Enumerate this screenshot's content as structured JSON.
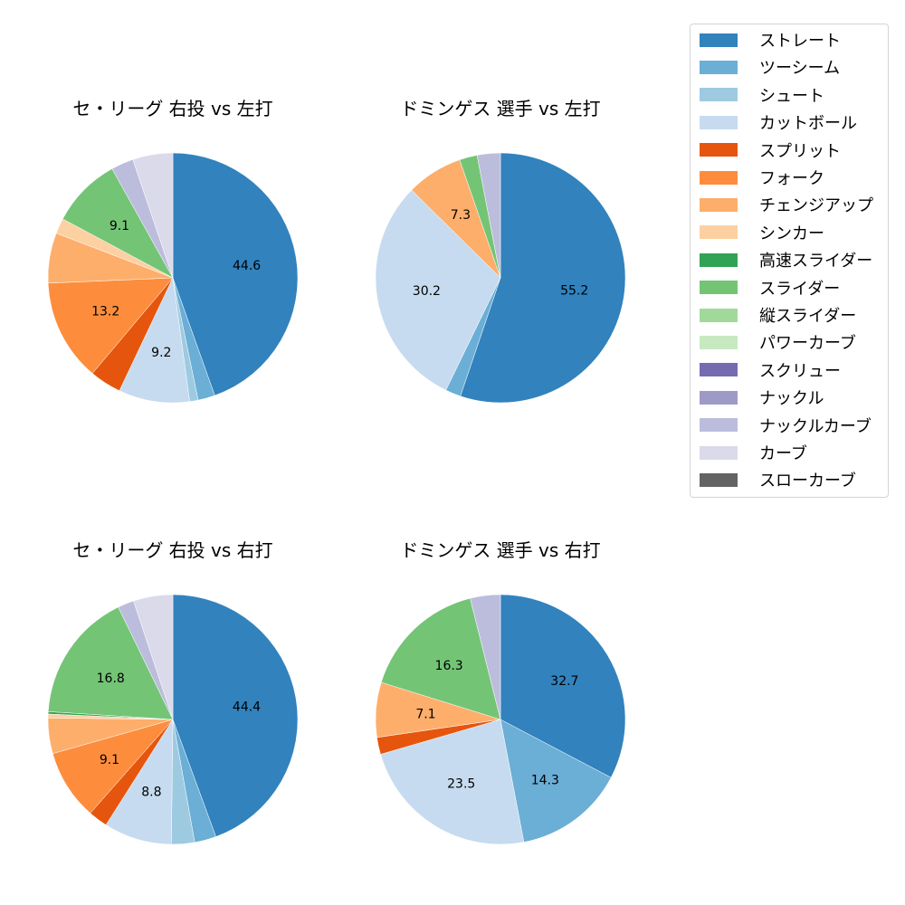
{
  "chart_data": [
    {
      "type": "pie",
      "title": "セ・リーグ 右投 vs 左打",
      "categories": [
        "ストレート",
        "ツーシーム",
        "シュート",
        "カットボール",
        "スプリット",
        "フォーク",
        "チェンジアップ",
        "シンカー",
        "スライダー",
        "ナックルカーブ",
        "カーブ"
      ],
      "values": [
        44.6,
        2.2,
        1.1,
        9.2,
        4.1,
        13.2,
        6.5,
        2.0,
        9.1,
        2.9,
        5.2
      ],
      "labels_shown": [
        "44.6",
        "",
        "",
        "9.2",
        "",
        "13.2",
        "",
        "",
        "9.1",
        "",
        ""
      ]
    },
    {
      "type": "pie",
      "title": "ドミンゲス 選手 vs 左打",
      "categories": [
        "ストレート",
        "ツーシーム",
        "カットボール",
        "チェンジアップ",
        "スライダー",
        "ナックルカーブ"
      ],
      "values": [
        55.2,
        2.0,
        30.2,
        7.3,
        2.3,
        3.0
      ],
      "labels_shown": [
        "55.2",
        "",
        "30.2",
        "7.3",
        "",
        ""
      ]
    },
    {
      "type": "pie",
      "title": "セ・リーグ 右投 vs 右打",
      "categories": [
        "ストレート",
        "ツーシーム",
        "シュート",
        "カットボール",
        "スプリット",
        "フォーク",
        "チェンジアップ",
        "シンカー",
        "高速スライダー",
        "スライダー",
        "ナックルカーブ",
        "カーブ"
      ],
      "values": [
        44.4,
        2.8,
        3.0,
        8.8,
        2.5,
        9.1,
        4.6,
        0.5,
        0.3,
        16.8,
        2.1,
        5.1
      ],
      "labels_shown": [
        "44.4",
        "",
        "",
        "8.8",
        "",
        "9.1",
        "",
        "",
        "",
        "16.8",
        "",
        ""
      ]
    },
    {
      "type": "pie",
      "title": "ドミンゲス 選手 vs 右打",
      "categories": [
        "ストレート",
        "ツーシーム",
        "カットボール",
        "スプリット",
        "チェンジアップ",
        "スライダー",
        "ナックルカーブ"
      ],
      "values": [
        32.7,
        14.3,
        23.5,
        2.2,
        7.1,
        16.3,
        3.9
      ],
      "labels_shown": [
        "32.7",
        "14.3",
        "23.5",
        "",
        "7.1",
        "16.3",
        ""
      ]
    }
  ],
  "legend": {
    "position": "upper right",
    "items": [
      {
        "label": "ストレート",
        "color": "#3182bd"
      },
      {
        "label": "ツーシーム",
        "color": "#6baed6"
      },
      {
        "label": "シュート",
        "color": "#9ecae1"
      },
      {
        "label": "カットボール",
        "color": "#c6dbef"
      },
      {
        "label": "スプリット",
        "color": "#e6550d"
      },
      {
        "label": "フォーク",
        "color": "#fd8d3c"
      },
      {
        "label": "チェンジアップ",
        "color": "#fdae6b"
      },
      {
        "label": "シンカー",
        "color": "#fdd0a2"
      },
      {
        "label": "高速スライダー",
        "color": "#31a354"
      },
      {
        "label": "スライダー",
        "color": "#74c476"
      },
      {
        "label": "縦スライダー",
        "color": "#a1d99b"
      },
      {
        "label": "パワーカーブ",
        "color": "#c7e9c0"
      },
      {
        "label": "スクリュー",
        "color": "#756bb1"
      },
      {
        "label": "ナックル",
        "color": "#9e9ac8"
      },
      {
        "label": "ナックルカーブ",
        "color": "#bcbddc"
      },
      {
        "label": "カーブ",
        "color": "#dadaeb"
      },
      {
        "label": "スローカーブ",
        "color": "#636363"
      }
    ]
  }
}
